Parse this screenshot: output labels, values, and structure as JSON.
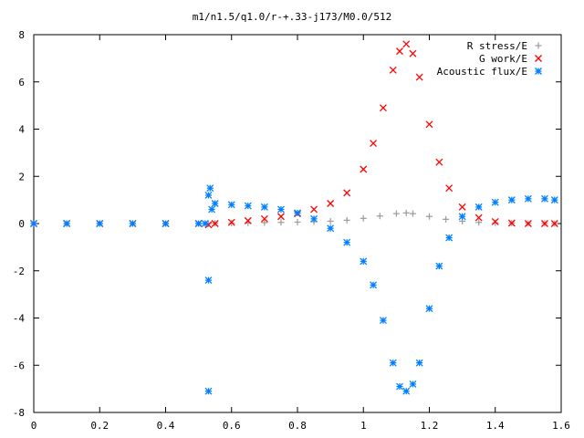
{
  "chart_data": {
    "type": "scatter",
    "title": "m1/n1.5/q1.0/r-+.33-j173/M0.0/512",
    "xlabel": "",
    "ylabel": "",
    "xlim": [
      0,
      1.6
    ],
    "ylim": [
      -8,
      8
    ],
    "xticks": [
      {
        "value": 0,
        "label": "0"
      },
      {
        "value": 0.2,
        "label": "0.2"
      },
      {
        "value": 0.4,
        "label": "0.4"
      },
      {
        "value": 0.6,
        "label": "0.6"
      },
      {
        "value": 0.8,
        "label": "0.8"
      },
      {
        "value": 1.0,
        "label": "1"
      },
      {
        "value": 1.2,
        "label": "1.2"
      },
      {
        "value": 1.4,
        "label": "1.4"
      },
      {
        "value": 1.6,
        "label": "1.6"
      }
    ],
    "yticks": [
      {
        "value": -8,
        "label": "-8"
      },
      {
        "value": -6,
        "label": "-6"
      },
      {
        "value": -4,
        "label": "-4"
      },
      {
        "value": -2,
        "label": "-2"
      },
      {
        "value": 0,
        "label": "0"
      },
      {
        "value": 2,
        "label": "2"
      },
      {
        "value": 4,
        "label": "4"
      },
      {
        "value": 6,
        "label": "6"
      },
      {
        "value": 8,
        "label": "8"
      }
    ],
    "grid": false,
    "legend_position": "top-right",
    "series": [
      {
        "name": "R stress/E",
        "marker": "plus",
        "color": "#a0a0a0",
        "x": [
          0.0,
          0.1,
          0.2,
          0.3,
          0.4,
          0.5,
          0.53,
          0.55,
          0.6,
          0.65,
          0.7,
          0.75,
          0.8,
          0.85,
          0.9,
          0.95,
          1.0,
          1.05,
          1.1,
          1.13,
          1.15,
          1.2,
          1.25,
          1.3,
          1.35,
          1.4,
          1.45,
          1.5,
          1.55,
          1.58
        ],
        "y": [
          0,
          0,
          0,
          0,
          0,
          0,
          0,
          0.01,
          0.02,
          0.03,
          0.04,
          0.05,
          0.06,
          0.08,
          0.1,
          0.14,
          0.22,
          0.32,
          0.42,
          0.45,
          0.42,
          0.3,
          0.18,
          0.1,
          0.05,
          0.03,
          0.02,
          0.01,
          0.01,
          0
        ]
      },
      {
        "name": "G work/E",
        "marker": "cross",
        "color": "#ff0000",
        "x": [
          0.0,
          0.1,
          0.2,
          0.3,
          0.4,
          0.5,
          0.53,
          0.55,
          0.6,
          0.65,
          0.7,
          0.75,
          0.8,
          0.85,
          0.9,
          0.95,
          1.0,
          1.03,
          1.06,
          1.09,
          1.11,
          1.13,
          1.15,
          1.17,
          1.2,
          1.23,
          1.26,
          1.3,
          1.35,
          1.4,
          1.45,
          1.5,
          1.55,
          1.58
        ],
        "y": [
          0,
          0,
          0,
          0,
          0,
          0,
          -0.05,
          0,
          0.05,
          0.12,
          0.2,
          0.3,
          0.42,
          0.6,
          0.85,
          1.3,
          2.3,
          3.4,
          4.9,
          6.5,
          7.3,
          7.6,
          7.2,
          6.2,
          4.2,
          2.6,
          1.5,
          0.7,
          0.25,
          0.08,
          0.02,
          0,
          0,
          0
        ]
      },
      {
        "name": "Acoustic flux/E",
        "marker": "star",
        "color": "#0080ff",
        "x": [
          0.0,
          0.1,
          0.2,
          0.3,
          0.4,
          0.5,
          0.52,
          0.53,
          0.53,
          0.53,
          0.535,
          0.54,
          0.55,
          0.6,
          0.65,
          0.7,
          0.75,
          0.8,
          0.85,
          0.9,
          0.95,
          1.0,
          1.03,
          1.06,
          1.09,
          1.11,
          1.13,
          1.15,
          1.17,
          1.2,
          1.23,
          1.26,
          1.3,
          1.35,
          1.4,
          1.45,
          1.5,
          1.55,
          1.58
        ],
        "y": [
          0,
          0,
          0,
          0,
          0,
          0,
          0,
          -7.1,
          -2.4,
          1.2,
          1.5,
          0.6,
          0.85,
          0.8,
          0.75,
          0.7,
          0.6,
          0.45,
          0.2,
          -0.2,
          -0.8,
          -1.6,
          -2.6,
          -4.1,
          -5.9,
          -6.9,
          -7.1,
          -6.8,
          -5.9,
          -3.6,
          -1.8,
          -0.6,
          0.3,
          0.7,
          0.9,
          1.0,
          1.05,
          1.05,
          1.0
        ]
      }
    ]
  }
}
